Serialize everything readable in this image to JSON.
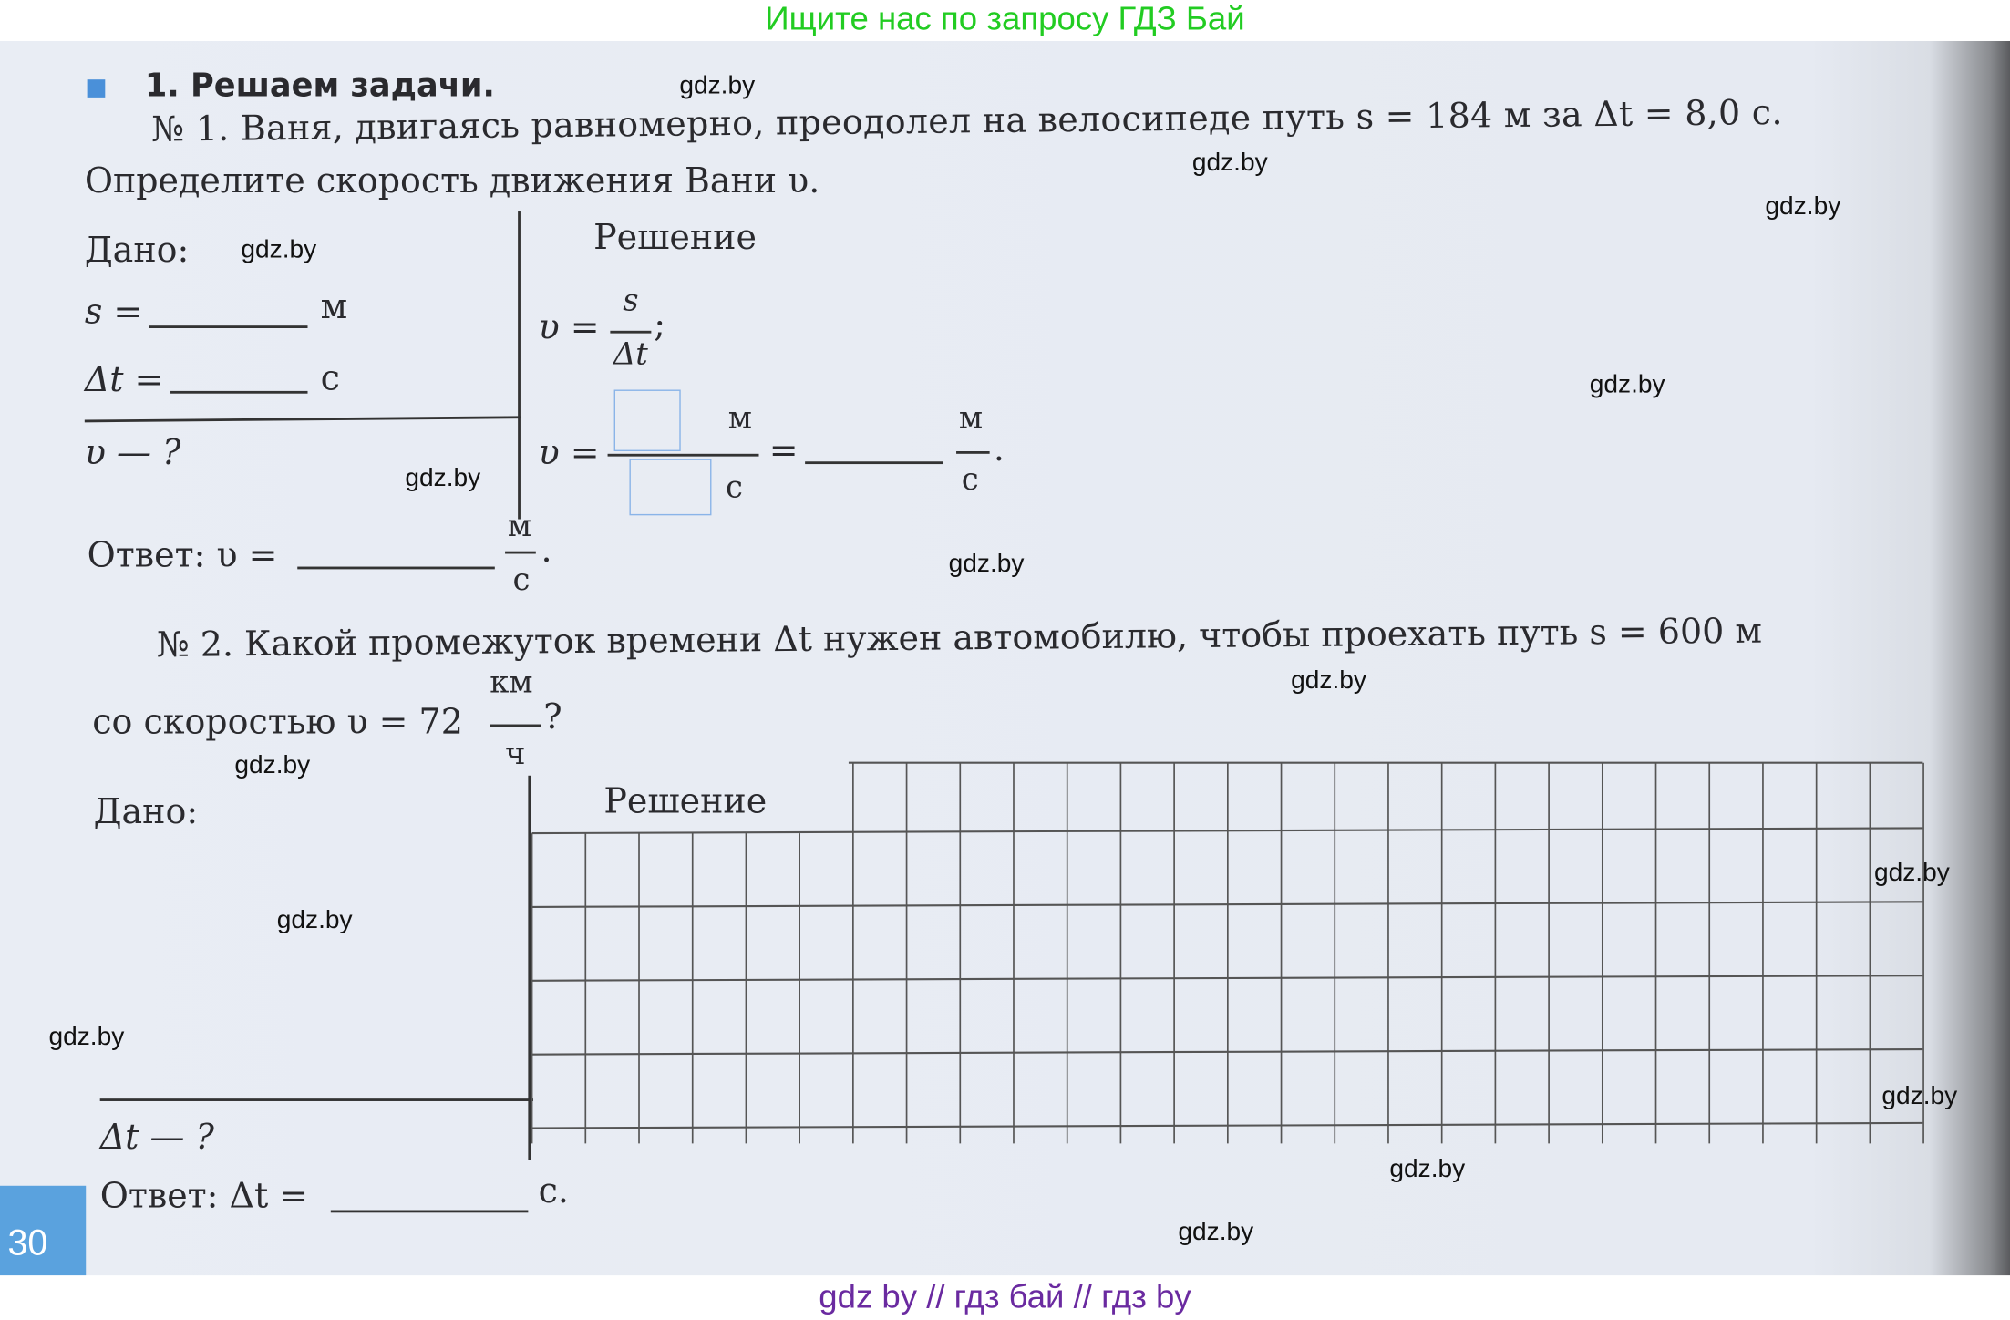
{
  "banner_top": "Ищите нас по запросу ГДЗ Бай",
  "banner_bottom": "gdz by  //  гдз бай  //  гдз by",
  "watermark": "gdz.by",
  "section": {
    "title": "1. Решаем задачи."
  },
  "task1": {
    "line1": "№ 1. Ваня, двигаясь равномерно, преодолел на велосипеде путь s = 184 м за Δt = 8,0 с.",
    "line2": "Определите скорость движения Вани υ.",
    "given_label": "Дано:",
    "s_label": "s =",
    "s_unit": "м",
    "t_label": "Δt =",
    "t_unit": "с",
    "find": "υ — ?",
    "solution_label": "Решение",
    "formula_lhs": "υ =",
    "formula_num": "s",
    "formula_den": "Δt",
    "formula_end": ";",
    "calc_lhs": "υ =",
    "calc_num_unit": "м",
    "calc_den_unit": "с",
    "calc_eq": "=",
    "result_num_unit": "м",
    "result_den_unit": "с",
    "result_end": ".",
    "answer_label": "Ответ: υ =",
    "answer_num_unit": "м",
    "answer_den_unit": "с",
    "answer_end": "."
  },
  "task2": {
    "line1": "№ 2. Какой промежуток времени Δt нужен автомобилю, чтобы проехать путь s = 600 м",
    "line2": "со скоростью υ = 72",
    "speed_num_unit": "км",
    "speed_den_unit": "ч",
    "line2_end": "?",
    "given_label": "Дано:",
    "find": "Δt — ?",
    "solution_label": "Решение",
    "answer_label": "Ответ: Δt =",
    "answer_unit": "с."
  },
  "page_number": "30",
  "colors": {
    "accent": "#4a90d9",
    "banner_green": "#22cc22",
    "banner_purple": "#6a2aa0",
    "page_number_bg": "#5aa2de"
  }
}
